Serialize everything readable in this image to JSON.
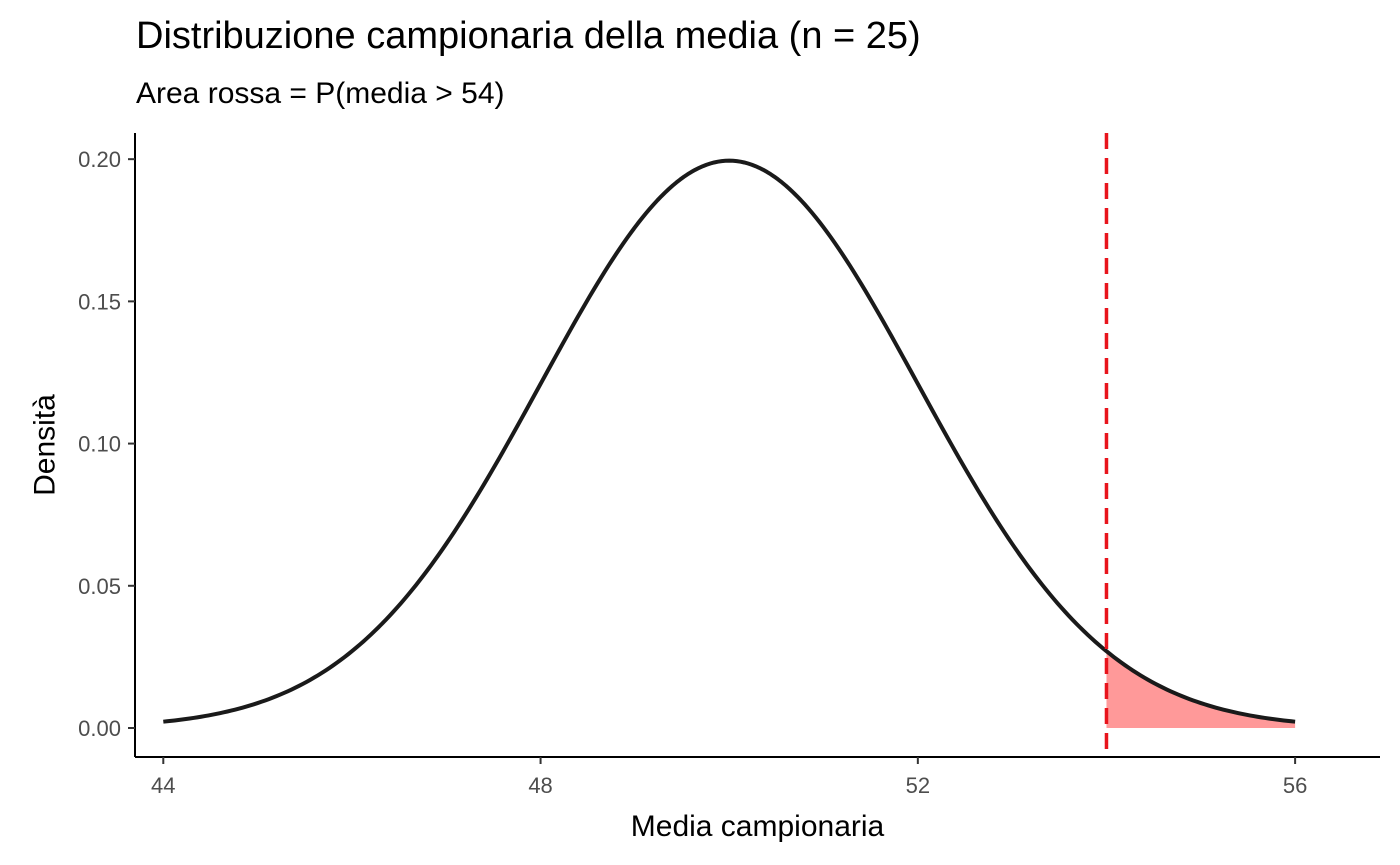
{
  "chart_data": {
    "type": "area",
    "title": "Distribuzione campionaria della media (n = 25)",
    "subtitle": "Area rossa = P(media > 54)",
    "xlabel": "Media campionaria",
    "ylabel": "Densità",
    "xlim": [
      43.7,
      56.9
    ],
    "ylim": [
      -0.0102,
      0.2092
    ],
    "x_ticks": [
      44,
      48,
      52,
      56
    ],
    "x_tick_labels": [
      "44",
      "48",
      "52",
      "56"
    ],
    "y_ticks": [
      0.0,
      0.05,
      0.1,
      0.15,
      0.2
    ],
    "y_tick_labels": [
      "0.00",
      "0.05",
      "0.10",
      "0.15",
      "0.20"
    ],
    "grid": false,
    "legend": "none",
    "density_curve": {
      "distribution": "normal",
      "mean": 50,
      "sd": 2,
      "x_range": [
        44,
        56
      ],
      "x": [
        44,
        44.5,
        45,
        45.5,
        46,
        46.5,
        47,
        47.5,
        48,
        48.5,
        49,
        49.5,
        50,
        50.5,
        51,
        51.5,
        52,
        52.5,
        53,
        53.5,
        54,
        54.5,
        55,
        55.5,
        56
      ],
      "y": [
        0.0022,
        0.0045,
        0.0088,
        0.0159,
        0.027,
        0.0431,
        0.0648,
        0.0913,
        0.121,
        0.1506,
        0.176,
        0.1933,
        0.1995,
        0.1933,
        0.176,
        0.1506,
        0.121,
        0.0913,
        0.0648,
        0.0431,
        0.027,
        0.0159,
        0.0088,
        0.0045,
        0.0022
      ],
      "color": "#1a1a1a"
    },
    "shaded_area": {
      "x_from": 54,
      "x_to": 56,
      "fill": "#ff9999"
    },
    "reference_line": {
      "x": 54,
      "color": "#e8141c",
      "style": "dashed"
    }
  }
}
